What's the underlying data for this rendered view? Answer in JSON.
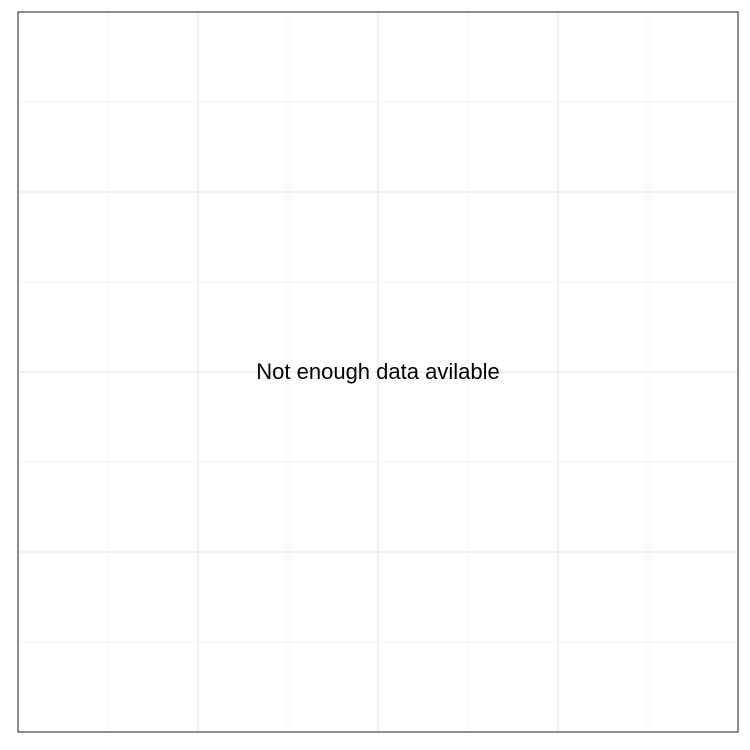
{
  "chart_data": {
    "type": "scatter",
    "title": "",
    "xlabel": "",
    "ylabel": "",
    "series": [],
    "grid": true,
    "legend": "none",
    "annotation": "Not enough data avilable"
  },
  "colors": {
    "background": "#ffffff",
    "grid_major": "#ebebeb",
    "grid_minor": "#f2f2f2",
    "panel_border": "#333333",
    "text": "#000000"
  }
}
